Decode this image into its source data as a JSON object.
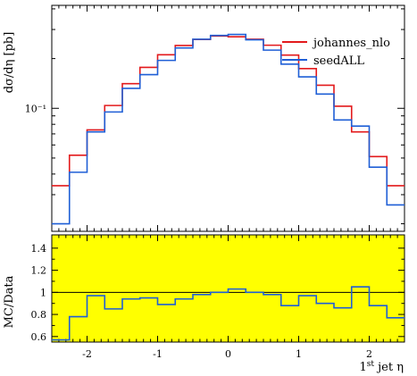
{
  "chart_data": [
    {
      "type": "line",
      "panel": "main",
      "ylabel": "dσ/dη [pb]",
      "yscale": "log",
      "ylim": [
        0.018,
        0.42
      ],
      "xlim": [
        -2.5,
        2.5
      ],
      "y_ticks": [
        {
          "value": 0.1,
          "label": "10⁻¹"
        }
      ],
      "legend_position": "top-right",
      "bin_edges": [
        -2.5,
        -2.25,
        -2.0,
        -1.75,
        -1.5,
        -1.25,
        -1.0,
        -0.75,
        -0.5,
        -0.25,
        0.0,
        0.25,
        0.5,
        0.75,
        1.0,
        1.25,
        1.5,
        1.75,
        2.0,
        2.25,
        2.5
      ],
      "series": [
        {
          "name": "johannes_nlo",
          "color": "#e31a1c",
          "values": [
            0.034,
            0.052,
            0.074,
            0.104,
            0.141,
            0.177,
            0.211,
            0.24,
            0.261,
            0.274,
            0.271,
            0.262,
            0.241,
            0.21,
            0.174,
            0.138,
            0.103,
            0.072,
            0.051,
            0.034
          ]
        },
        {
          "name": "seedALL",
          "color": "#1f5fd6",
          "values": [
            0.02,
            0.041,
            0.072,
            0.095,
            0.132,
            0.16,
            0.195,
            0.232,
            0.262,
            0.276,
            0.28,
            0.26,
            0.225,
            0.185,
            0.155,
            0.122,
            0.085,
            0.078,
            0.044,
            0.026
          ]
        }
      ]
    },
    {
      "type": "line",
      "panel": "ratio",
      "ylabel": "MC/Data",
      "xlabel": "1st jet η",
      "xlim": [
        -2.5,
        2.5
      ],
      "ylim": [
        0.55,
        1.52
      ],
      "x_ticks": [
        -2,
        -1,
        0,
        1,
        2
      ],
      "y_ticks": [
        0.6,
        0.8,
        1,
        1.2,
        1.4
      ],
      "reference_line": 1,
      "band_color": "#ffff00",
      "series": [
        {
          "name": "seedALL",
          "color": "#1f5fd6",
          "values": [
            0.57,
            0.78,
            0.97,
            0.85,
            0.94,
            0.95,
            0.89,
            0.94,
            0.98,
            1.0,
            1.03,
            1.0,
            0.98,
            0.88,
            0.97,
            0.9,
            0.86,
            1.05,
            0.88,
            0.77
          ]
        }
      ]
    }
  ],
  "texts": {
    "ylabel_main": "dσ/dη [pb]",
    "ylabel_ratio": "MC/Data",
    "xlabel": "1st jet η",
    "legend": [
      "johannes_nlo",
      "seedALL"
    ]
  }
}
